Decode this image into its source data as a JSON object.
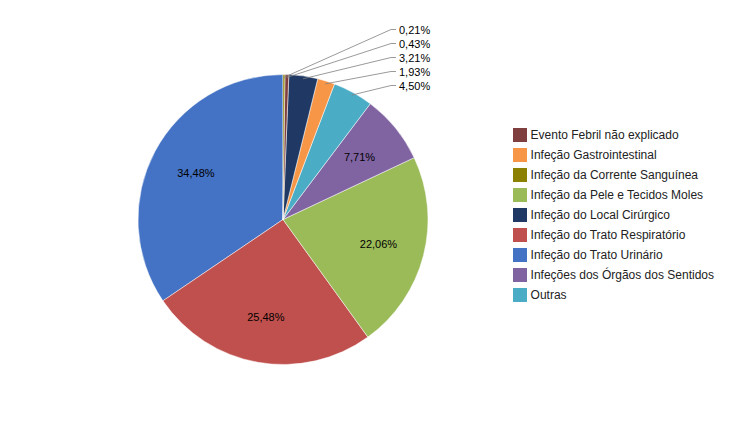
{
  "chart_data": {
    "type": "pie",
    "categories": [
      "Infeção do Trato Urinário",
      "Infeção do Trato Respiratório",
      "Infeção da Pele e Tecidos Moles",
      "Infeções dos Órgãos dos Sentidos",
      "Outras",
      "Infeção Gastrointestinal",
      "Infeção do Local Cirúrgico",
      "Evento Febril não explicado",
      "Infeção da Corrente Sanguínea"
    ],
    "values": [
      34.48,
      25.48,
      22.06,
      7.71,
      4.5,
      1.93,
      3.21,
      0.43,
      0.21
    ],
    "value_labels": [
      "34,48%",
      "25,48%",
      "22,06%",
      "7,71%",
      "4,50%",
      "1,93%",
      "3,21%",
      "0,43%",
      "0,21%"
    ],
    "colors": [
      "#4472C4",
      "#C0504D",
      "#9BBB59",
      "#8064A2",
      "#4BACC6",
      "#F79646",
      "#1F3864",
      "#7F3F3F",
      "#8B8000"
    ],
    "data_labels": true,
    "legend": "right"
  }
}
